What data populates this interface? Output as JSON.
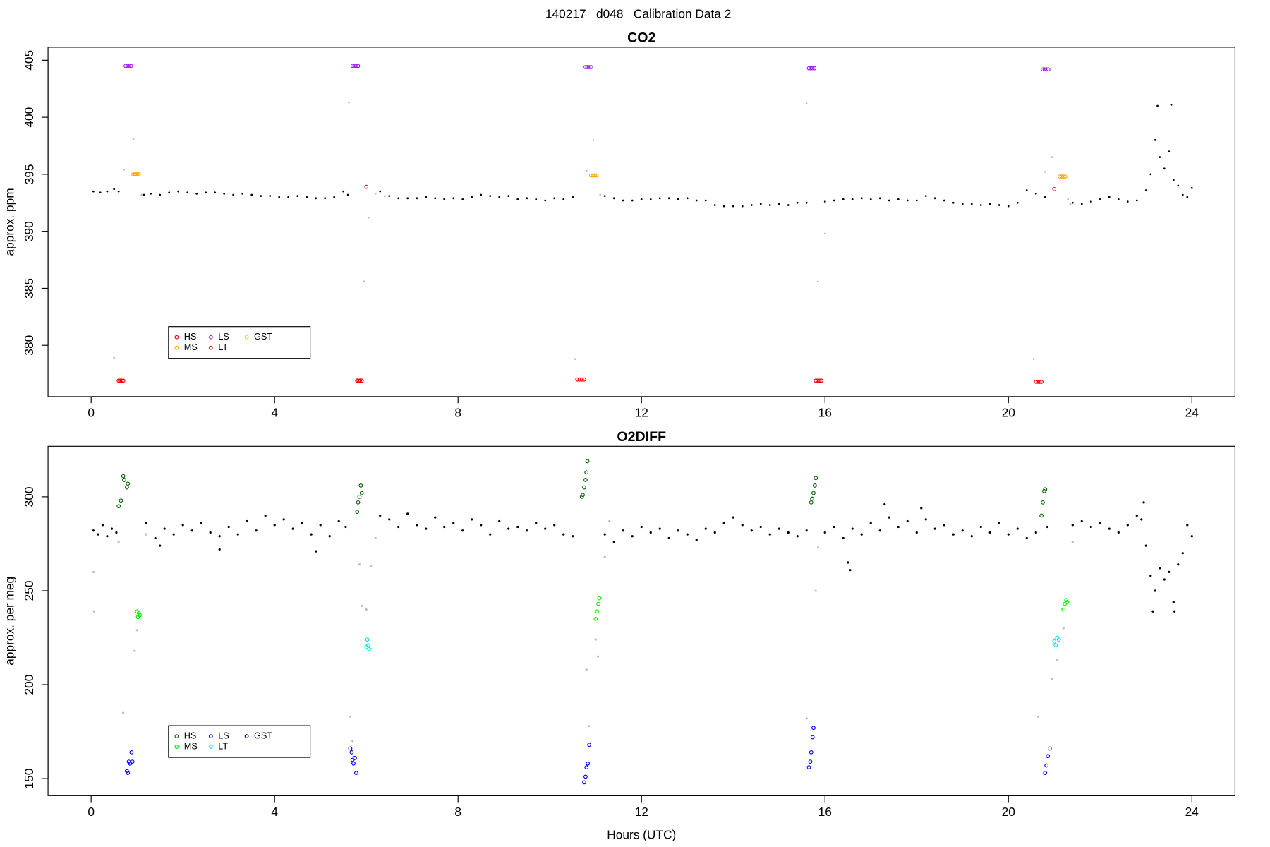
{
  "title": "140217   d048   Calibration Data 2",
  "chart_data": [
    {
      "type": "scatter",
      "title": "CO2",
      "ylabel": "approx. ppm",
      "legend": "bottomleft",
      "xlim": [
        -0.94,
        24.94
      ],
      "ylim": [
        375.5,
        406.14
      ],
      "xticks": [
        0,
        4,
        8,
        12,
        16,
        20,
        24
      ],
      "yticks": [
        380,
        385,
        390,
        395,
        400,
        405
      ],
      "series": [
        {
          "color": "#000000",
          "marker": "dot",
          "x": [
            0.05,
            0.2,
            0.35,
            0.5,
            0.6,
            1.15,
            1.3,
            1.5,
            1.7,
            1.9,
            2.1,
            2.3,
            2.5,
            2.7,
            2.9,
            3.1,
            3.3,
            3.5,
            3.7,
            3.9,
            4.1,
            4.3,
            4.5,
            4.7,
            4.9,
            5.1,
            5.3,
            5.5,
            5.6,
            6.3,
            6.5,
            6.7,
            6.9,
            7.1,
            7.3,
            7.5,
            7.7,
            7.9,
            8.1,
            8.3,
            8.5,
            8.7,
            8.9,
            9.1,
            9.3,
            9.5,
            9.7,
            9.9,
            10.1,
            10.3,
            10.5,
            11.2,
            11.4,
            11.6,
            11.8,
            12.0,
            12.2,
            12.4,
            12.6,
            12.8,
            13.0,
            13.2,
            13.4,
            13.6,
            13.8,
            14.0,
            14.2,
            14.4,
            14.6,
            14.8,
            15.0,
            15.2,
            15.4,
            15.6,
            16.0,
            16.2,
            16.4,
            16.6,
            16.8,
            17.0,
            17.2,
            17.4,
            17.6,
            17.8,
            18.0,
            18.2,
            18.4,
            18.6,
            18.8,
            19.0,
            19.2,
            19.4,
            19.6,
            19.8,
            20.0,
            20.2,
            20.4,
            20.6,
            20.8,
            21.4,
            21.6,
            21.8,
            22.0,
            22.2,
            22.4,
            22.6,
            22.8,
            23.0,
            23.1,
            23.2,
            23.3,
            23.4,
            23.5,
            23.6,
            23.7,
            23.8,
            23.9,
            24.0,
            23.25,
            23.55
          ],
          "values": [
            393.5,
            393.4,
            393.5,
            393.7,
            393.5,
            393.2,
            393.3,
            393.2,
            393.4,
            393.5,
            393.4,
            393.3,
            393.4,
            393.4,
            393.3,
            393.2,
            393.3,
            393.2,
            393.1,
            393.1,
            393.0,
            393.0,
            393.1,
            393.0,
            392.9,
            392.9,
            393.0,
            393.5,
            393.2,
            393.5,
            393.1,
            392.9,
            392.9,
            392.9,
            393.0,
            392.9,
            392.8,
            392.9,
            392.8,
            393.0,
            393.2,
            393.1,
            393.0,
            393.1,
            392.8,
            392.9,
            392.8,
            392.7,
            392.9,
            392.8,
            393.0,
            393.1,
            392.9,
            392.7,
            392.7,
            392.8,
            392.8,
            392.9,
            392.9,
            392.8,
            392.9,
            392.7,
            392.7,
            392.3,
            392.2,
            392.2,
            392.2,
            392.3,
            392.4,
            392.3,
            392.4,
            392.3,
            392.5,
            392.5,
            392.6,
            392.7,
            392.8,
            392.8,
            392.9,
            392.8,
            392.9,
            392.7,
            392.8,
            392.7,
            392.7,
            393.1,
            392.9,
            392.7,
            392.5,
            392.4,
            392.4,
            392.3,
            392.4,
            392.3,
            392.2,
            392.5,
            393.6,
            393.3,
            393.0,
            392.5,
            392.4,
            392.6,
            392.8,
            393.0,
            392.8,
            392.6,
            392.7,
            393.6,
            395.0,
            398.0,
            396.5,
            395.5,
            397.0,
            394.5,
            394.0,
            393.2,
            393.0,
            393.8,
            401.0,
            401.1
          ]
        },
        {
          "color": "#bebebe",
          "marker": "dot",
          "x": [
            0.5,
            0.72,
            0.92,
            1.1,
            5.62,
            5.95,
            6.05,
            6.2,
            6.4,
            10.55,
            10.8,
            10.95,
            11.1,
            15.6,
            15.85,
            16.0,
            20.55,
            20.8,
            20.95,
            21.3,
            21.35
          ],
          "values": [
            378.9,
            395.4,
            398.1,
            393.2,
            401.3,
            385.6,
            391.2,
            393.3,
            393.1,
            378.8,
            395.3,
            398.0,
            393.2,
            401.2,
            385.6,
            389.8,
            378.8,
            395.2,
            396.5,
            392.8,
            392.4
          ]
        },
        {
          "name": "HS",
          "color": "#ff0000",
          "marker": "circle",
          "x": [
            0.6,
            0.63,
            0.66,
            0.7,
            5.8,
            5.83,
            5.86,
            5.9,
            10.6,
            10.65,
            10.7,
            10.75,
            15.8,
            15.84,
            15.88,
            15.92,
            20.6,
            20.64,
            20.68,
            20.72
          ],
          "values": [
            376.9,
            376.9,
            376.9,
            376.9,
            376.9,
            376.9,
            376.9,
            376.9,
            377.0,
            377.0,
            377.0,
            377.0,
            376.9,
            376.9,
            376.9,
            376.9,
            376.8,
            376.8,
            376.8,
            376.8
          ]
        },
        {
          "name": "MS",
          "color": "#ffa500",
          "marker": "circle",
          "x": [
            0.92,
            0.96,
            1.0,
            1.04,
            10.9,
            10.94,
            10.98,
            11.02,
            21.12,
            21.16,
            21.2,
            21.24
          ],
          "values": [
            395.0,
            395.0,
            395.0,
            395.0,
            394.9,
            394.9,
            394.9,
            394.9,
            394.8,
            394.8,
            394.8,
            394.8
          ]
        },
        {
          "name": "LS",
          "color": "#a020f0",
          "marker": "circle",
          "x": [
            0.75,
            0.79,
            0.83,
            0.87,
            5.7,
            5.74,
            5.78,
            5.82,
            10.78,
            10.82,
            10.86,
            10.9,
            15.65,
            15.69,
            15.73,
            15.77,
            20.75,
            20.79,
            20.83,
            20.87
          ],
          "values": [
            404.5,
            404.5,
            404.5,
            404.5,
            404.5,
            404.5,
            404.5,
            404.5,
            404.4,
            404.4,
            404.4,
            404.4,
            404.3,
            404.3,
            404.3,
            404.3,
            404.2,
            404.2,
            404.2,
            404.2
          ]
        },
        {
          "name": "LT",
          "color": "#b22222",
          "marker": "circle",
          "x": [
            6.0,
            21.0
          ],
          "values": [
            393.9,
            393.7
          ]
        },
        {
          "name": "GST",
          "color": "#ffd700",
          "marker": "circle",
          "x": [],
          "values": []
        }
      ]
    },
    {
      "type": "scatter",
      "title": "O2DIFF",
      "ylabel": "approx. per meg",
      "xlabel": "Hours (UTC)",
      "legend": "bottomleft",
      "xlim": [
        -0.94,
        24.94
      ],
      "ylim": [
        140.9,
        326.9
      ],
      "xticks": [
        0,
        4,
        8,
        12,
        16,
        20,
        24
      ],
      "yticks": [
        150,
        200,
        250,
        300
      ],
      "series": [
        {
          "color": "#000000",
          "marker": "dot",
          "x": [
            0.05,
            0.15,
            0.25,
            0.35,
            0.45,
            0.55,
            1.2,
            1.4,
            1.6,
            1.8,
            2.0,
            2.2,
            2.4,
            2.6,
            2.8,
            3.0,
            3.2,
            3.4,
            3.6,
            3.8,
            4.0,
            4.2,
            4.4,
            4.6,
            4.8,
            5.0,
            5.2,
            5.4,
            5.55,
            1.5,
            2.8,
            4.9,
            6.3,
            6.5,
            6.7,
            6.9,
            7.1,
            7.3,
            7.5,
            7.7,
            7.9,
            8.1,
            8.3,
            8.5,
            8.7,
            8.9,
            9.1,
            9.3,
            9.5,
            9.7,
            9.9,
            10.1,
            10.3,
            10.5,
            11.2,
            11.4,
            11.6,
            11.8,
            12.0,
            12.2,
            12.4,
            12.6,
            12.8,
            13.0,
            13.2,
            13.4,
            13.6,
            13.8,
            14.0,
            14.2,
            14.4,
            14.6,
            14.8,
            15.0,
            15.2,
            15.4,
            15.6,
            16.0,
            16.2,
            16.4,
            16.6,
            16.8,
            17.0,
            17.2,
            17.4,
            17.6,
            17.8,
            18.0,
            18.2,
            18.4,
            18.6,
            18.8,
            19.0,
            19.2,
            19.4,
            19.6,
            19.8,
            20.0,
            20.2,
            20.4,
            20.6,
            20.85,
            16.5,
            16.55,
            17.3,
            18.1,
            21.4,
            21.6,
            21.8,
            22.0,
            22.2,
            22.4,
            22.6,
            22.8,
            22.9,
            23.0,
            23.1,
            23.2,
            23.3,
            23.4,
            23.5,
            23.6,
            23.7,
            23.8,
            23.9,
            24.0,
            22.95,
            23.15,
            23.62
          ],
          "values": [
            282,
            280,
            285,
            279,
            283,
            281,
            286,
            278,
            283,
            280,
            285,
            282,
            286,
            281,
            279,
            284,
            280,
            287,
            282,
            290,
            285,
            288,
            283,
            286,
            280,
            285,
            279,
            287,
            284,
            274,
            272,
            271,
            290,
            288,
            284,
            291,
            285,
            283,
            289,
            284,
            286,
            282,
            288,
            285,
            280,
            287,
            283,
            284,
            282,
            286,
            283,
            285,
            280,
            279,
            280,
            276,
            282,
            279,
            284,
            281,
            283,
            278,
            282,
            280,
            277,
            283,
            281,
            286,
            289,
            285,
            282,
            284,
            280,
            283,
            281,
            279,
            282,
            281,
            284,
            278,
            283,
            280,
            286,
            282,
            289,
            284,
            287,
            281,
            288,
            283,
            285,
            280,
            282,
            279,
            284,
            281,
            286,
            280,
            283,
            278,
            281,
            284,
            265,
            261,
            296,
            294,
            285,
            287,
            284,
            286,
            283,
            281,
            285,
            290,
            288,
            274,
            258,
            250,
            262,
            256,
            260,
            244,
            264,
            270,
            285,
            279,
            297,
            239,
            239
          ]
        },
        {
          "color": "#bebebe",
          "marker": "dot",
          "x": [
            0.05,
            0.06,
            0.6,
            0.7,
            0.95,
            1.0,
            1.2,
            5.65,
            5.7,
            5.85,
            5.9,
            6.0,
            6.1,
            6.2,
            10.8,
            10.85,
            11.0,
            11.05,
            11.2,
            11.3,
            15.6,
            15.8,
            15.85,
            20.65,
            20.95,
            21.05,
            21.2,
            21.4
          ],
          "values": [
            260,
            239,
            276,
            185,
            218,
            229,
            280,
            183,
            170,
            264,
            242,
            240,
            263,
            278,
            208,
            178,
            224,
            215,
            268,
            287,
            182,
            250,
            273,
            183,
            203,
            213,
            230,
            276
          ]
        },
        {
          "name": "HS",
          "color": "#006400",
          "marker": "circle",
          "x": [
            0.6,
            0.65,
            0.7,
            0.72,
            0.78,
            0.8,
            5.8,
            5.82,
            5.85,
            5.88,
            5.9,
            10.7,
            10.72,
            10.75,
            10.78,
            10.8,
            10.82,
            15.7,
            15.72,
            15.75,
            15.78,
            15.8,
            20.72,
            20.75,
            20.78,
            20.8
          ],
          "values": [
            295,
            298,
            311,
            309,
            305,
            307,
            292,
            297,
            300,
            306,
            302,
            300,
            301,
            305,
            309,
            313,
            319,
            297,
            299,
            302,
            306,
            310,
            290,
            297,
            303,
            304
          ]
        },
        {
          "name": "MS",
          "color": "#00ee00",
          "marker": "circle",
          "x": [
            1.0,
            1.02,
            1.04,
            1.06,
            11.0,
            11.03,
            11.06,
            11.08,
            21.2,
            21.23,
            21.26,
            21.28
          ],
          "values": [
            239,
            236,
            238,
            237,
            235,
            239,
            243,
            246,
            240,
            243,
            245,
            244
          ]
        },
        {
          "name": "LS",
          "color": "#0000ff",
          "marker": "circle",
          "x": [
            0.78,
            0.8,
            0.82,
            0.85,
            0.88,
            0.9,
            5.65,
            5.68,
            5.7,
            5.72,
            5.75,
            5.78,
            10.75,
            10.78,
            10.8,
            10.83,
            10.86,
            15.65,
            15.68,
            15.7,
            15.73,
            15.75,
            20.8,
            20.83,
            20.86,
            20.9
          ],
          "values": [
            154,
            153,
            159,
            158,
            164,
            159,
            166,
            164,
            160,
            158,
            161,
            153,
            148,
            151,
            156,
            158,
            168,
            156,
            159,
            164,
            172,
            177,
            153,
            157,
            162,
            166
          ]
        },
        {
          "name": "LT",
          "color": "#00e5ee",
          "marker": "circle",
          "x": [
            6.0,
            6.02,
            6.04,
            6.06,
            21.0,
            21.03,
            21.06,
            21.1
          ],
          "values": [
            220,
            224,
            221,
            219,
            223,
            221,
            225,
            224
          ]
        },
        {
          "name": "GST",
          "color": "#00008b",
          "marker": "circle",
          "x": [],
          "values": []
        }
      ]
    }
  ]
}
